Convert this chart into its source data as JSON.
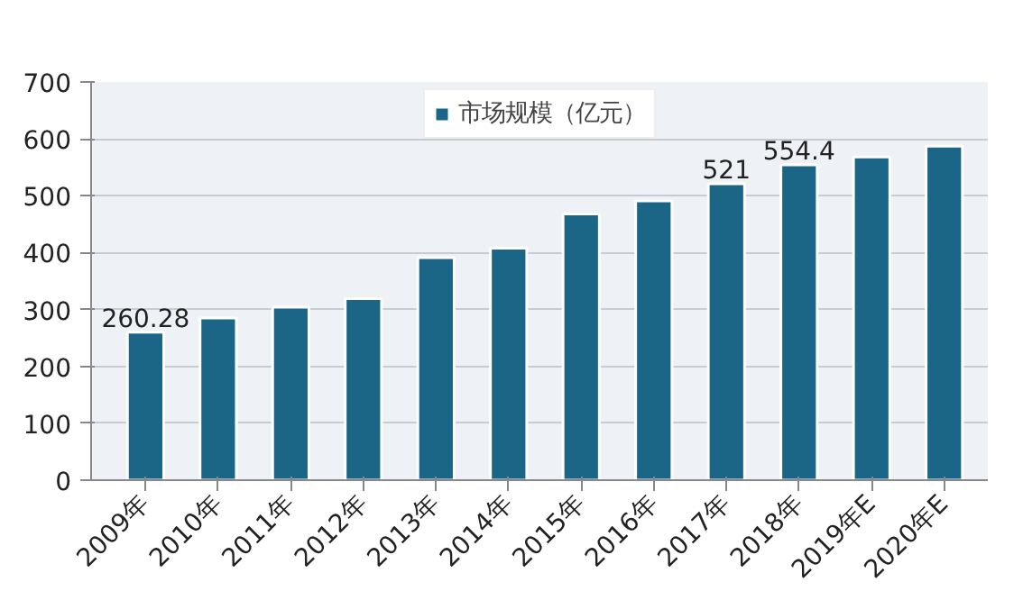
{
  "chart_data": {
    "type": "bar",
    "categories": [
      "2009年",
      "2010年",
      "2011年",
      "2012年",
      "2013年",
      "2014年",
      "2015年",
      "2016年",
      "2017年",
      "2018年",
      "2019年E",
      "2020年E"
    ],
    "series": [
      {
        "name": "市场规模（亿元）",
        "color": "#1b6587",
        "values": [
          260.28,
          285,
          304,
          319,
          391,
          408,
          468,
          491,
          521,
          554.4,
          568,
          587
        ],
        "value_labels": [
          "260.28",
          null,
          null,
          null,
          null,
          null,
          null,
          null,
          "521",
          "554.4",
          null,
          null
        ]
      }
    ],
    "ylim": [
      0,
      700
    ],
    "yticks": [
      0,
      100,
      200,
      300,
      400,
      500,
      600,
      700
    ],
    "grid": "y",
    "legend": "top"
  }
}
